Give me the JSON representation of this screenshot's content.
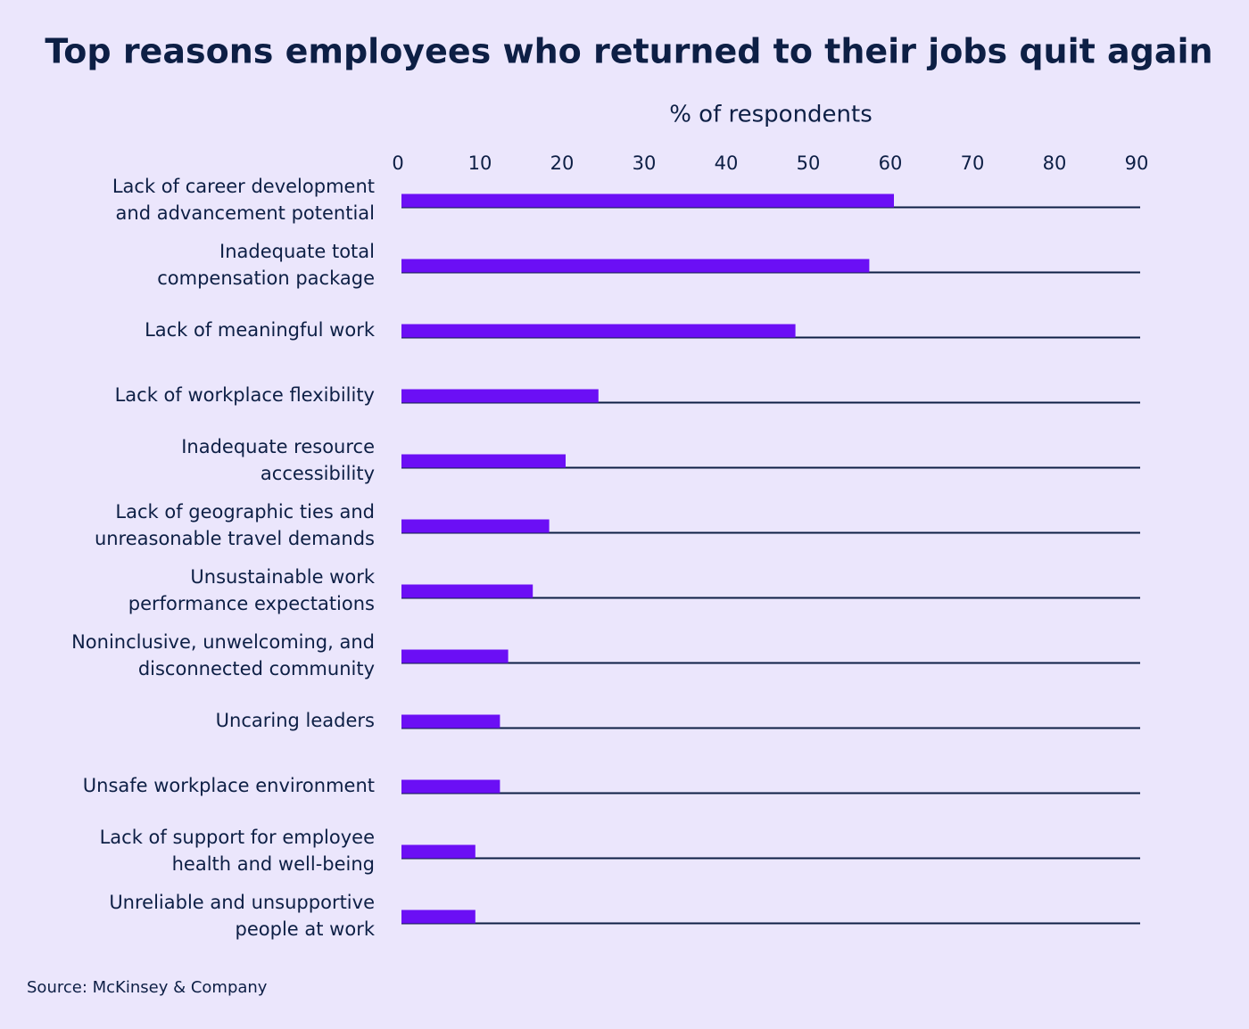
{
  "chart_data": {
    "type": "bar",
    "orientation": "horizontal",
    "title": "Top reasons employees who returned to their jobs quit again",
    "x_label": "% of respondents",
    "categories": [
      [
        "Lack of career development",
        "and advancement potential"
      ],
      [
        "Inadequate total",
        "compensation package"
      ],
      [
        "Lack of meaningful work"
      ],
      [
        "Lack of workplace flexibility"
      ],
      [
        "Inadequate resource",
        "accessibility"
      ],
      [
        "Lack of geographic ties and",
        "unreasonable travel demands"
      ],
      [
        "Unsustainable work",
        "performance expectations"
      ],
      [
        "Noninclusive, unwelcoming, and",
        "disconnected community"
      ],
      [
        "Uncaring leaders"
      ],
      [
        "Unsafe workplace environment"
      ],
      [
        "Lack of support for employee",
        "health and well-being"
      ],
      [
        "Unreliable and unsupportive",
        "people at work"
      ]
    ],
    "values": [
      60,
      57,
      48,
      24,
      20,
      18,
      16,
      13,
      12,
      12,
      9,
      9
    ],
    "color": "#6b0ff5",
    "xlim": [
      0,
      90
    ],
    "xticks": [
      0,
      10,
      20,
      30,
      40,
      50,
      60,
      70,
      80,
      90
    ],
    "source": "Source: McKinsey & Company"
  }
}
